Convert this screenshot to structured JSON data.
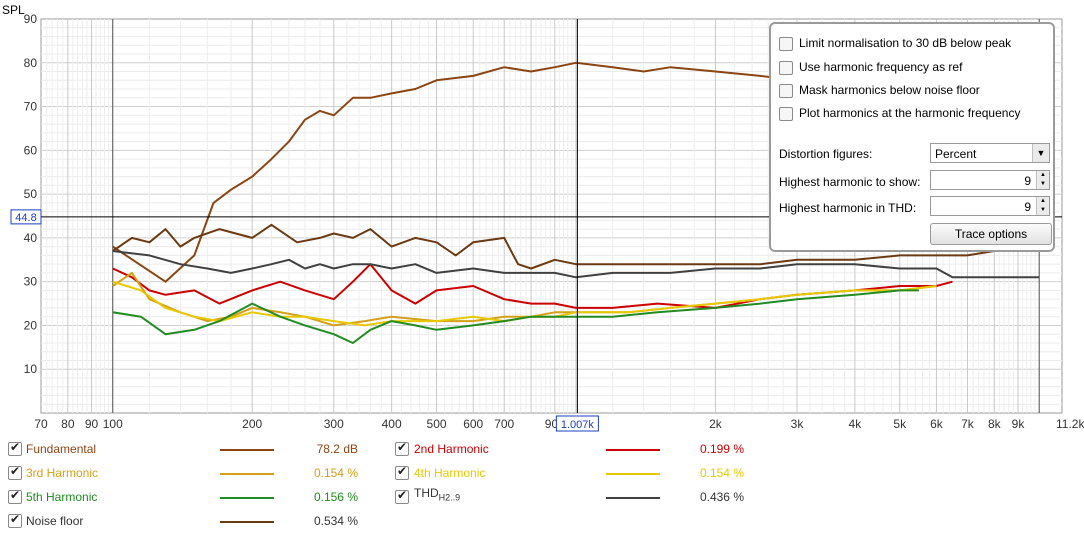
{
  "chart_data": {
    "type": "line",
    "ylabel": "SPL",
    "xunit": "Hz",
    "ylim": [
      0,
      90
    ],
    "xlim": [
      70,
      11200
    ],
    "xscale": "log",
    "yticks": [
      10,
      20,
      30,
      40,
      50,
      60,
      70,
      80,
      90
    ],
    "xticks": [
      {
        "v": 70,
        "label": "70"
      },
      {
        "v": 80,
        "label": "80"
      },
      {
        "v": 90,
        "label": "90"
      },
      {
        "v": 100,
        "label": "100"
      },
      {
        "v": 200,
        "label": "200"
      },
      {
        "v": 300,
        "label": "300"
      },
      {
        "v": 400,
        "label": "400"
      },
      {
        "v": 500,
        "label": "500"
      },
      {
        "v": 600,
        "label": "600"
      },
      {
        "v": 700,
        "label": "700"
      },
      {
        "v": 2000,
        "label": "2k"
      },
      {
        "v": 3000,
        "label": "3k"
      },
      {
        "v": 4000,
        "label": "4k"
      },
      {
        "v": 5000,
        "label": "5k"
      },
      {
        "v": 6000,
        "label": "6k"
      },
      {
        "v": 7000,
        "label": "7k"
      },
      {
        "v": 8000,
        "label": "8k"
      },
      {
        "v": 9000,
        "label": "9k"
      },
      {
        "v": 11200,
        "label": "11.2kHz"
      }
    ],
    "x_truncated_tick": {
      "v": 900,
      "label": "90"
    },
    "cursor": {
      "x": 1007,
      "y": 44.8,
      "x_label": "1.007k",
      "y_label": "44.8"
    },
    "grid": true,
    "series": [
      {
        "name": "Fundamental",
        "color": "#8b4513",
        "points": [
          [
            100,
            38
          ],
          [
            130,
            30
          ],
          [
            150,
            36
          ],
          [
            165,
            48
          ],
          [
            180,
            51
          ],
          [
            200,
            54
          ],
          [
            220,
            58
          ],
          [
            240,
            62
          ],
          [
            260,
            67
          ],
          [
            280,
            69
          ],
          [
            300,
            68
          ],
          [
            330,
            72
          ],
          [
            360,
            72
          ],
          [
            400,
            73
          ],
          [
            450,
            74
          ],
          [
            500,
            76
          ],
          [
            600,
            77
          ],
          [
            700,
            79
          ],
          [
            800,
            78
          ],
          [
            900,
            79
          ],
          [
            1000,
            80
          ],
          [
            1200,
            79
          ],
          [
            1400,
            78
          ],
          [
            1600,
            79
          ],
          [
            2000,
            78
          ],
          [
            2500,
            77
          ],
          [
            3000,
            76
          ],
          [
            3500,
            75
          ],
          [
            4000,
            74
          ],
          [
            5000,
            72
          ],
          [
            6000,
            70
          ],
          [
            7000,
            69
          ],
          [
            8000,
            68
          ],
          [
            9000,
            68
          ],
          [
            10000,
            68
          ]
        ]
      },
      {
        "name": "2nd Harmonic",
        "color": "#cc0000",
        "points": [
          [
            100,
            33
          ],
          [
            110,
            31
          ],
          [
            120,
            28
          ],
          [
            130,
            27
          ],
          [
            150,
            28
          ],
          [
            170,
            25
          ],
          [
            200,
            28
          ],
          [
            230,
            30
          ],
          [
            260,
            28
          ],
          [
            300,
            26
          ],
          [
            330,
            30
          ],
          [
            360,
            34
          ],
          [
            400,
            28
          ],
          [
            450,
            25
          ],
          [
            500,
            28
          ],
          [
            600,
            29
          ],
          [
            700,
            26
          ],
          [
            800,
            25
          ],
          [
            900,
            25
          ],
          [
            1000,
            24
          ],
          [
            1200,
            24
          ],
          [
            1500,
            25
          ],
          [
            2000,
            24
          ],
          [
            2500,
            26
          ],
          [
            3000,
            27
          ],
          [
            4000,
            28
          ],
          [
            5000,
            29
          ],
          [
            6000,
            29
          ],
          [
            6500,
            30
          ]
        ]
      },
      {
        "name": "3rd Harmonic",
        "color": "#d4a017",
        "points": [
          [
            100,
            29
          ],
          [
            110,
            32
          ],
          [
            120,
            26
          ],
          [
            140,
            23
          ],
          [
            160,
            21
          ],
          [
            180,
            22
          ],
          [
            200,
            24
          ],
          [
            230,
            23
          ],
          [
            260,
            22
          ],
          [
            300,
            20
          ],
          [
            350,
            21
          ],
          [
            400,
            22
          ],
          [
            500,
            21
          ],
          [
            600,
            21
          ],
          [
            700,
            22
          ],
          [
            800,
            22
          ],
          [
            900,
            23
          ],
          [
            1000,
            23
          ],
          [
            1300,
            23
          ],
          [
            1600,
            24
          ],
          [
            2000,
            25
          ],
          [
            2500,
            26
          ],
          [
            3000,
            27
          ],
          [
            4000,
            28
          ],
          [
            5000,
            28
          ],
          [
            6000,
            29
          ]
        ]
      },
      {
        "name": "4th Harmonic",
        "color": "#e8c800",
        "points": [
          [
            100,
            30
          ],
          [
            115,
            28
          ],
          [
            130,
            24
          ],
          [
            150,
            22
          ],
          [
            170,
            21
          ],
          [
            200,
            23
          ],
          [
            230,
            22
          ],
          [
            260,
            22
          ],
          [
            300,
            21
          ],
          [
            350,
            20
          ],
          [
            400,
            21
          ],
          [
            500,
            21
          ],
          [
            600,
            22
          ],
          [
            700,
            21
          ],
          [
            800,
            22
          ],
          [
            900,
            22
          ],
          [
            1000,
            23
          ],
          [
            1300,
            23
          ],
          [
            1600,
            24
          ],
          [
            2000,
            25
          ],
          [
            2500,
            26
          ],
          [
            3000,
            27
          ],
          [
            4000,
            28
          ],
          [
            5000,
            28
          ],
          [
            6000,
            29
          ]
        ]
      },
      {
        "name": "5th Harmonic",
        "color": "#228b22",
        "points": [
          [
            100,
            23
          ],
          [
            115,
            22
          ],
          [
            130,
            18
          ],
          [
            150,
            19
          ],
          [
            170,
            21
          ],
          [
            200,
            25
          ],
          [
            230,
            22
          ],
          [
            260,
            20
          ],
          [
            300,
            18
          ],
          [
            330,
            16
          ],
          [
            360,
            19
          ],
          [
            400,
            21
          ],
          [
            450,
            20
          ],
          [
            500,
            19
          ],
          [
            600,
            20
          ],
          [
            700,
            21
          ],
          [
            800,
            22
          ],
          [
            900,
            22
          ],
          [
            1000,
            22
          ],
          [
            1200,
            22
          ],
          [
            1500,
            23
          ],
          [
            2000,
            24
          ],
          [
            2500,
            25
          ],
          [
            3000,
            26
          ],
          [
            4000,
            27
          ],
          [
            5000,
            28
          ],
          [
            5500,
            28
          ]
        ]
      },
      {
        "name": "THD H2..9",
        "color": "#404040",
        "points": [
          [
            100,
            37
          ],
          [
            120,
            36
          ],
          [
            140,
            34
          ],
          [
            160,
            33
          ],
          [
            180,
            32
          ],
          [
            200,
            33
          ],
          [
            220,
            34
          ],
          [
            240,
            35
          ],
          [
            260,
            33
          ],
          [
            280,
            34
          ],
          [
            300,
            33
          ],
          [
            330,
            34
          ],
          [
            360,
            34
          ],
          [
            400,
            33
          ],
          [
            450,
            34
          ],
          [
            500,
            32
          ],
          [
            600,
            33
          ],
          [
            700,
            32
          ],
          [
            800,
            32
          ],
          [
            900,
            32
          ],
          [
            1000,
            31
          ],
          [
            1200,
            32
          ],
          [
            1400,
            32
          ],
          [
            1600,
            32
          ],
          [
            2000,
            33
          ],
          [
            2500,
            33
          ],
          [
            3000,
            34
          ],
          [
            3500,
            34
          ],
          [
            4000,
            34
          ],
          [
            5000,
            33
          ],
          [
            6000,
            33
          ],
          [
            6500,
            31
          ],
          [
            7000,
            31
          ],
          [
            8000,
            31
          ],
          [
            9000,
            31
          ],
          [
            10000,
            31
          ]
        ]
      },
      {
        "name": "Noise floor",
        "color": "#6b3a13",
        "points": [
          [
            100,
            37
          ],
          [
            110,
            40
          ],
          [
            120,
            39
          ],
          [
            130,
            42
          ],
          [
            140,
            38
          ],
          [
            150,
            40
          ],
          [
            170,
            42
          ],
          [
            200,
            40
          ],
          [
            220,
            43
          ],
          [
            250,
            39
          ],
          [
            280,
            40
          ],
          [
            300,
            41
          ],
          [
            330,
            40
          ],
          [
            360,
            42
          ],
          [
            400,
            38
          ],
          [
            450,
            40
          ],
          [
            500,
            39
          ],
          [
            550,
            36
          ],
          [
            600,
            39
          ],
          [
            700,
            40
          ],
          [
            750,
            34
          ],
          [
            800,
            33
          ],
          [
            900,
            35
          ],
          [
            1000,
            34
          ],
          [
            1200,
            34
          ],
          [
            1400,
            34
          ],
          [
            1600,
            34
          ],
          [
            2000,
            34
          ],
          [
            2500,
            34
          ],
          [
            3000,
            35
          ],
          [
            4000,
            35
          ],
          [
            5000,
            36
          ],
          [
            6000,
            36
          ],
          [
            7000,
            36
          ],
          [
            8000,
            37
          ],
          [
            9000,
            37
          ],
          [
            10000,
            37
          ]
        ]
      }
    ]
  },
  "legend": {
    "rows": [
      {
        "name": "Fundamental",
        "value": "78.2 dB",
        "color": "#8b4513"
      },
      {
        "name": "2nd Harmonic",
        "value": "0.199 %",
        "color": "#cc0000"
      },
      {
        "name": "3rd Harmonic",
        "value": "0.154 %",
        "color": "#d4a017"
      },
      {
        "name": "4th Harmonic",
        "value": "0.154 %",
        "color": "#e8c800"
      },
      {
        "name": "5th Harmonic",
        "value": "0.156 %",
        "color": "#228b22"
      },
      {
        "name": "THD",
        "sub": "H2..9",
        "value": "0.436 %",
        "color": "#404040"
      },
      {
        "name": "Noise floor",
        "value": "0.534 %",
        "color": "#6b3a13"
      }
    ]
  },
  "options": {
    "limit_norm": "Limit normalisation to 30 dB below peak",
    "use_harmonic_freq": "Use harmonic frequency as ref",
    "mask_harmonics": "Mask harmonics below noise floor",
    "plot_at_harmonic": "Plot harmonics at the harmonic frequency",
    "distortion_label": "Distortion figures:",
    "distortion_value": "Percent",
    "highest_show_label": "Highest harmonic to show:",
    "highest_show_value": "9",
    "highest_thd_label": "Highest harmonic in THD:",
    "highest_thd_value": "9",
    "trace_button": "Trace options"
  }
}
